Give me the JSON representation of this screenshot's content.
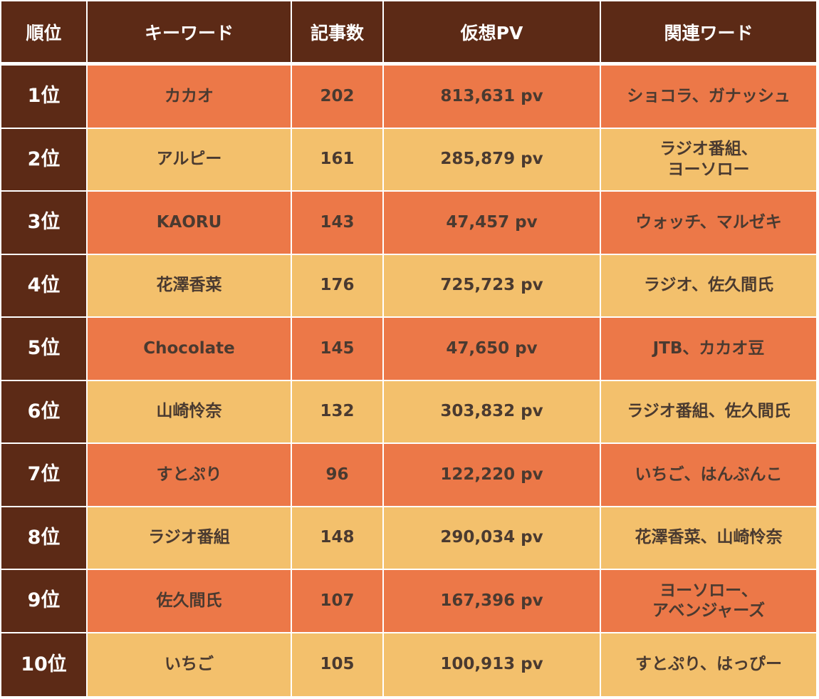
{
  "table": {
    "headers": {
      "rank": "順位",
      "keyword": "キーワード",
      "articles": "記事数",
      "pv": "仮想PV",
      "related": "関連ワード"
    },
    "colors": {
      "header_bg": "#5c2a16",
      "row_odd_bg": "#ec7848",
      "row_even_bg": "#f3c06c",
      "text_dark": "#4a3a30",
      "text_light": "#ffffff"
    },
    "rows": [
      {
        "rank": "1位",
        "keyword": "カカオ",
        "articles": "202",
        "pv": "813,631 pv",
        "related": [
          "ショコラ、ガナッシュ"
        ]
      },
      {
        "rank": "2位",
        "keyword": "アルピー",
        "articles": "161",
        "pv": "285,879 pv",
        "related": [
          "ラジオ番組、",
          "ヨーソロー"
        ]
      },
      {
        "rank": "3位",
        "keyword": "KAORU",
        "articles": "143",
        "pv": "47,457 pv",
        "related": [
          "ウォッチ、マルゼキ"
        ]
      },
      {
        "rank": "4位",
        "keyword": "花澤香菜",
        "articles": "176",
        "pv": "725,723 pv",
        "related": [
          "ラジオ、佐久間氏"
        ]
      },
      {
        "rank": "5位",
        "keyword": "Chocolate",
        "articles": "145",
        "pv": "47,650 pv",
        "related": [
          "JTB、カカオ豆"
        ]
      },
      {
        "rank": "6位",
        "keyword": "山崎怜奈",
        "articles": "132",
        "pv": "303,832 pv",
        "related": [
          "ラジオ番組、佐久間氏"
        ]
      },
      {
        "rank": "7位",
        "keyword": "すとぷり",
        "articles": "96",
        "pv": "122,220 pv",
        "related": [
          "いちご、はんぶんこ"
        ]
      },
      {
        "rank": "8位",
        "keyword": "ラジオ番組",
        "articles": "148",
        "pv": "290,034 pv",
        "related": [
          "花澤香菜、山崎怜奈"
        ]
      },
      {
        "rank": "9位",
        "keyword": "佐久間氏",
        "articles": "107",
        "pv": "167,396 pv",
        "related": [
          "ヨーソロー、",
          "アベンジャーズ"
        ]
      },
      {
        "rank": "10位",
        "keyword": "いちご",
        "articles": "105",
        "pv": "100,913 pv",
        "related": [
          "すとぷり、はっぴー"
        ]
      }
    ]
  }
}
